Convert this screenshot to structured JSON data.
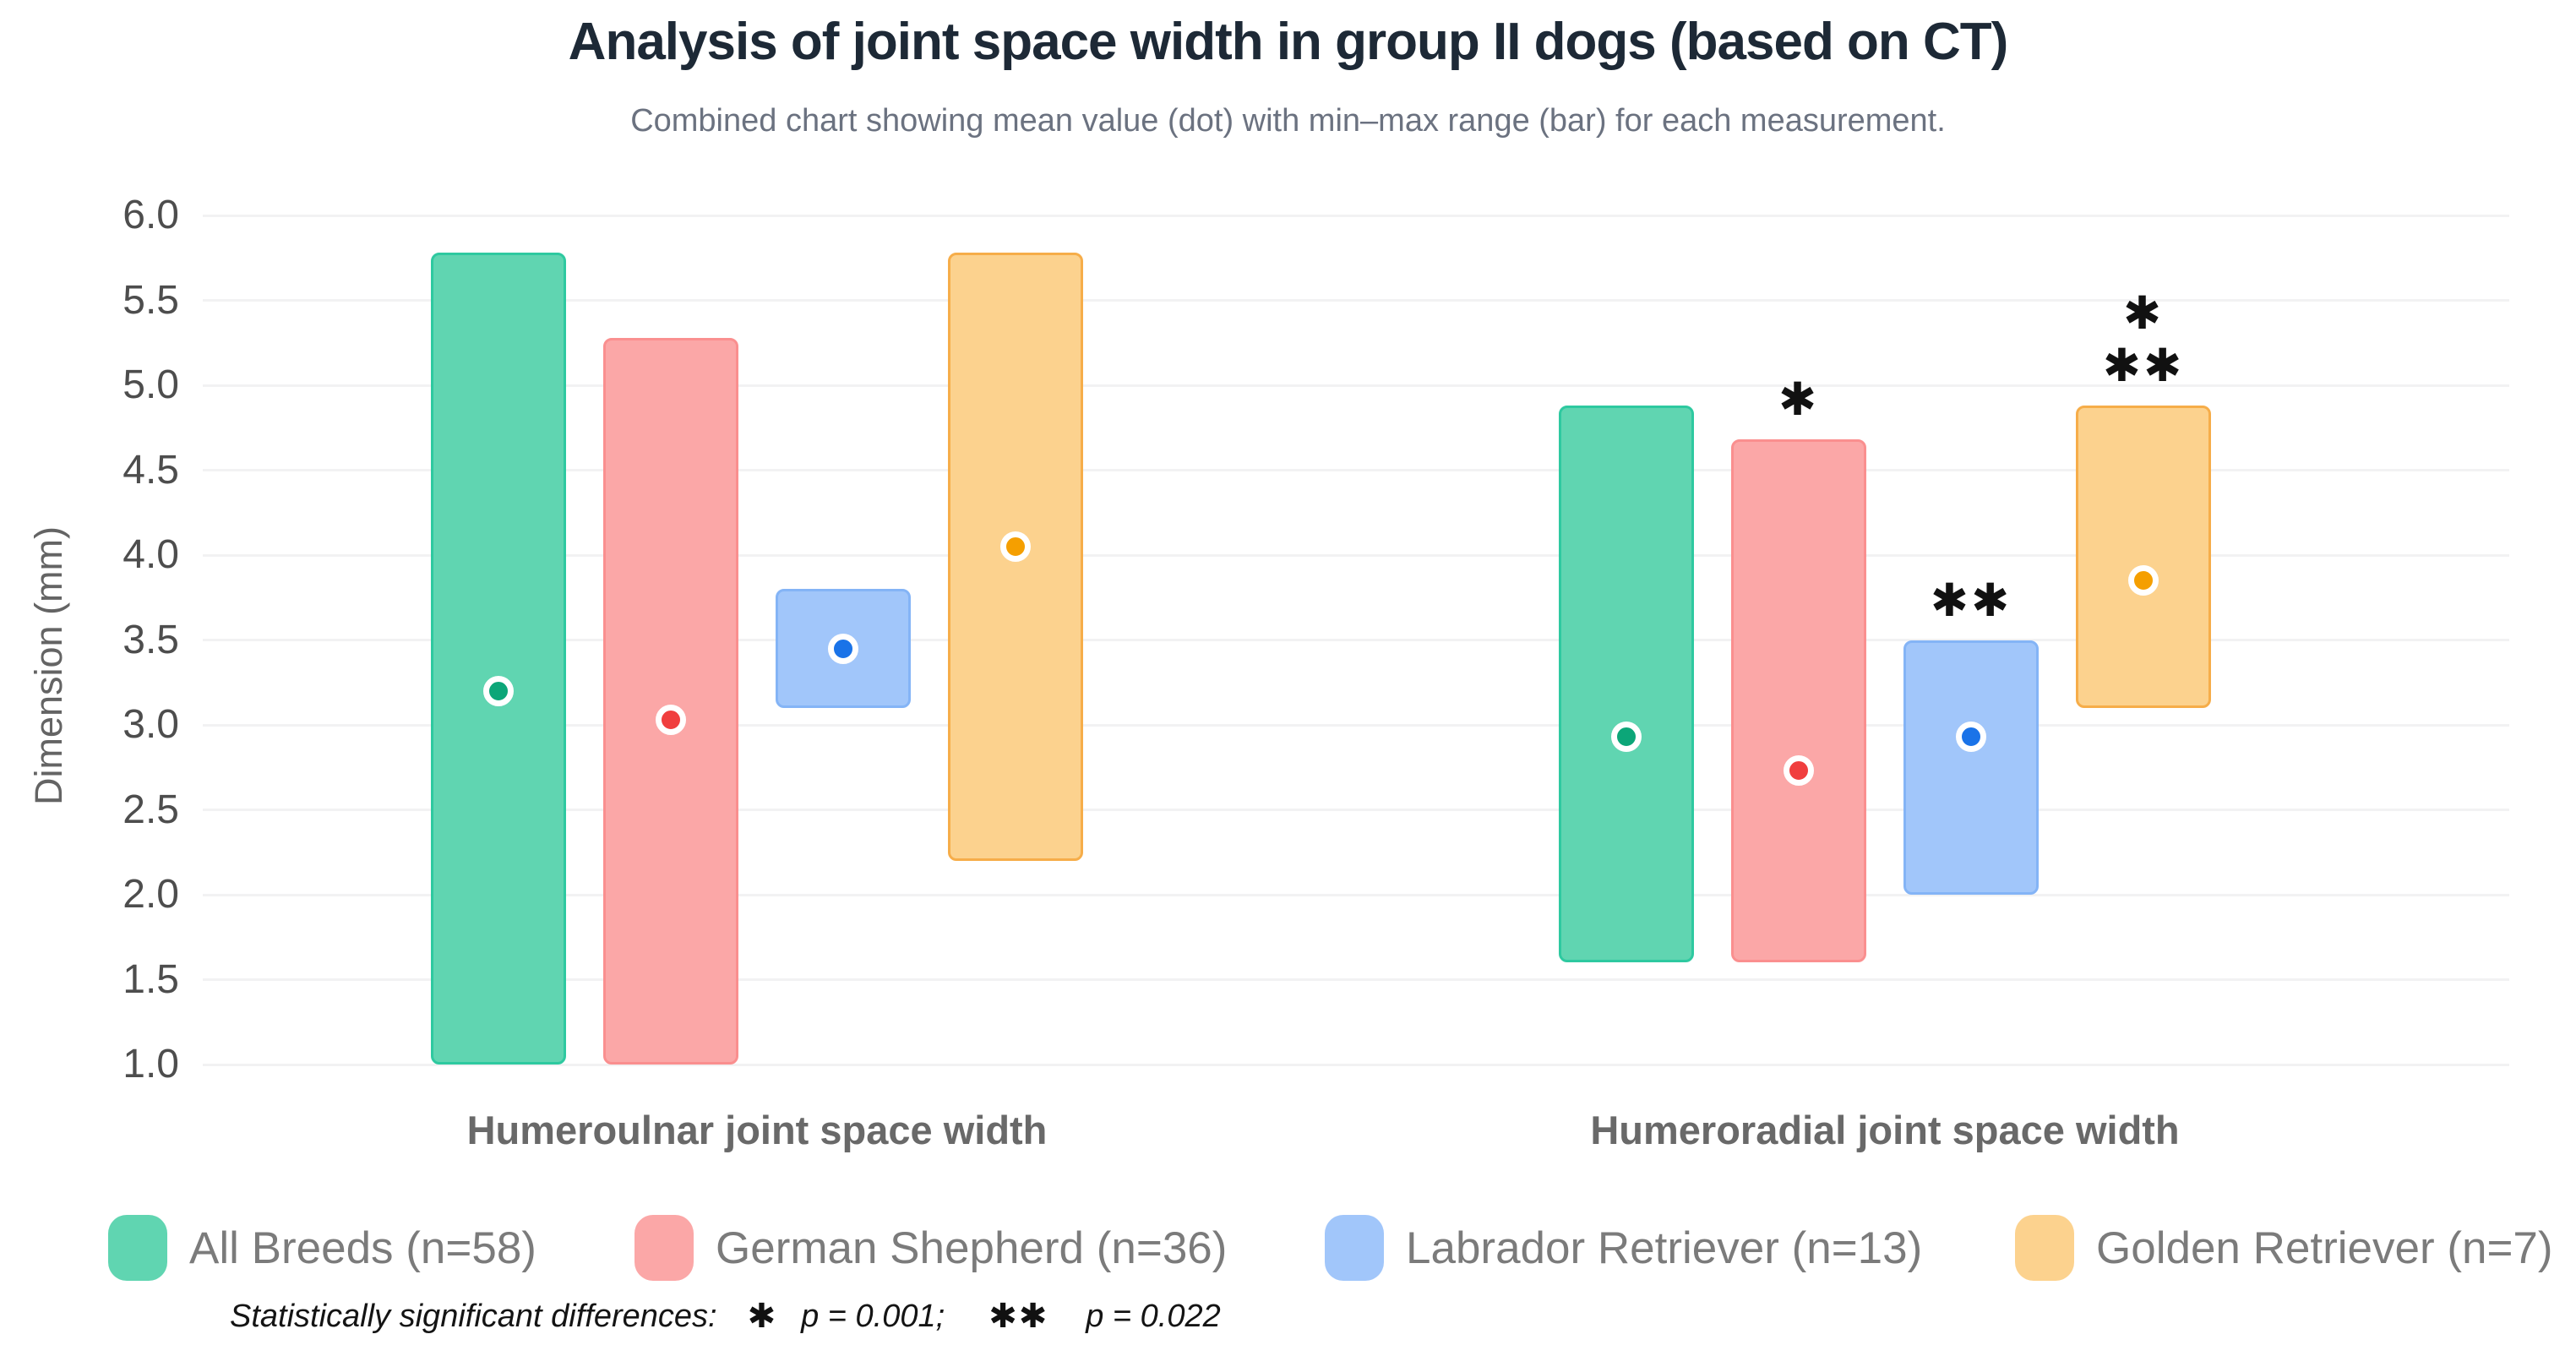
{
  "title": "Analysis of joint space width in group II dogs (based on CT)",
  "subtitle": "Combined chart showing mean value (dot) with min–max range (bar) for each measurement.",
  "y_axis": {
    "label": "Dimension (mm)",
    "ticks": [
      "6.0",
      "5.5",
      "5.0",
      "4.5",
      "4.0",
      "3.5",
      "3.0",
      "2.5",
      "2.0",
      "1.5",
      "1.0"
    ]
  },
  "chart_data": {
    "type": "range-dot-combined",
    "categories": [
      "Humeroulnar joint space width",
      "Humeroradial joint space width"
    ],
    "ylim": [
      1.0,
      6.0
    ],
    "grid": true,
    "legend_position": "bottom",
    "series": [
      {
        "name": "All Breeds (n=58)",
        "bar_color": "#60d5b1",
        "bar_border": "#2ec9a0",
        "dot_color": "#0ca678",
        "values": [
          {
            "group": "Humeroulnar joint space width",
            "min": 1.0,
            "max": 5.78,
            "mean": 3.2,
            "sig": []
          },
          {
            "group": "Humeroradial joint space width",
            "min": 1.6,
            "max": 4.88,
            "mean": 2.93,
            "sig": []
          }
        ]
      },
      {
        "name": "German Shepherd (n=36)",
        "bar_color": "#fba7a7",
        "bar_border": "#fa8f8f",
        "dot_color": "#f03e3e",
        "values": [
          {
            "group": "Humeroulnar joint space width",
            "min": 1.0,
            "max": 5.28,
            "mean": 3.03,
            "sig": []
          },
          {
            "group": "Humeroradial joint space width",
            "min": 1.6,
            "max": 4.68,
            "mean": 2.73,
            "sig": [
              "✱"
            ]
          }
        ]
      },
      {
        "name": "Labrador Retriever (n=13)",
        "bar_color": "#a1c6fa",
        "bar_border": "#84b4f6",
        "dot_color": "#1a73e8",
        "values": [
          {
            "group": "Humeroulnar joint space width",
            "min": 3.1,
            "max": 3.8,
            "mean": 3.45,
            "sig": []
          },
          {
            "group": "Humeroradial joint space width",
            "min": 2.0,
            "max": 3.5,
            "mean": 2.93,
            "sig": [
              "✱✱"
            ]
          }
        ]
      },
      {
        "name": "Golden Retriever (n=7)",
        "bar_color": "#fcd28e",
        "bar_border": "#f6ad49",
        "dot_color": "#f59f00",
        "values": [
          {
            "group": "Humeroulnar joint space width",
            "min": 2.2,
            "max": 5.78,
            "mean": 4.05,
            "sig": []
          },
          {
            "group": "Humeroradial joint space width",
            "min": 3.1,
            "max": 4.88,
            "mean": 3.85,
            "sig": [
              "✱",
              "✱✱"
            ]
          }
        ]
      }
    ]
  },
  "footnote": {
    "prefix": "Statistically significant differences:",
    "star1": "✱",
    "p1": "p =  0.001;",
    "star2": "✱✱",
    "p2": "p = 0.022"
  }
}
